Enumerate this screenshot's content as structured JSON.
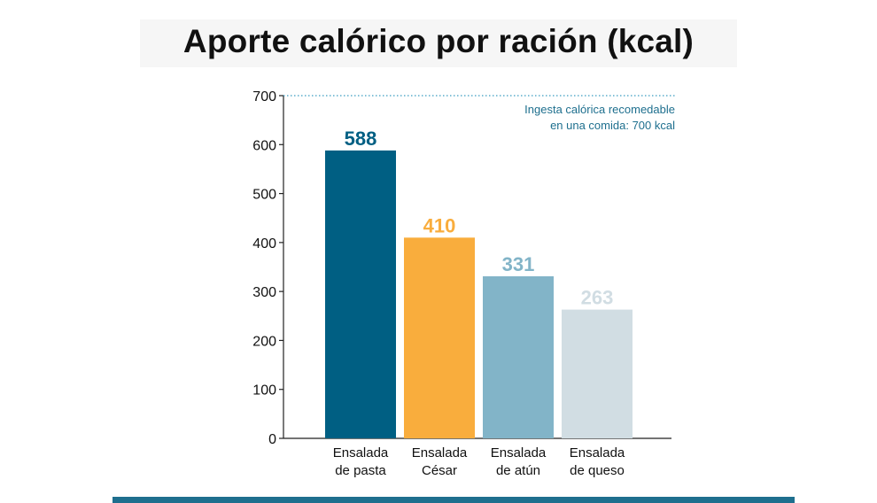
{
  "title": "Aporte calórico por ración (kcal)",
  "colors": {
    "pasta": "#005f83",
    "cesar": "#f9ad3d",
    "atun": "#82b4c8",
    "queso": "#d1dde3",
    "reference": "#3a9cc0",
    "reference_text": "#1e6f8e",
    "bottom_rule": "#1e6f8e"
  },
  "chart_data": {
    "type": "bar",
    "title": "Aporte calórico por ración (kcal)",
    "categories": [
      [
        "Ensalada",
        "de pasta"
      ],
      [
        "Ensalada",
        "César"
      ],
      [
        "Ensalada",
        "de atún"
      ],
      [
        "Ensalada",
        "de queso"
      ]
    ],
    "values": [
      588,
      410,
      331,
      263
    ],
    "value_labels": [
      "588",
      "410",
      "331",
      "263"
    ],
    "bar_colors": [
      "#005f83",
      "#f9ad3d",
      "#82b4c8",
      "#d1dde3"
    ],
    "ylim": [
      0,
      700
    ],
    "yticks": [
      0,
      100,
      200,
      300,
      400,
      500,
      600,
      700
    ],
    "ytick_labels": [
      "0",
      "100",
      "200",
      "300",
      "400",
      "500",
      "600",
      "700"
    ],
    "xlabel": "",
    "ylabel": "",
    "grid": false,
    "legend": "none",
    "reference_line": {
      "value": 700,
      "style": "dotted",
      "label_lines": [
        "Ingesta calórica recomedable",
        "en una comida: 700 kcal"
      ]
    }
  }
}
